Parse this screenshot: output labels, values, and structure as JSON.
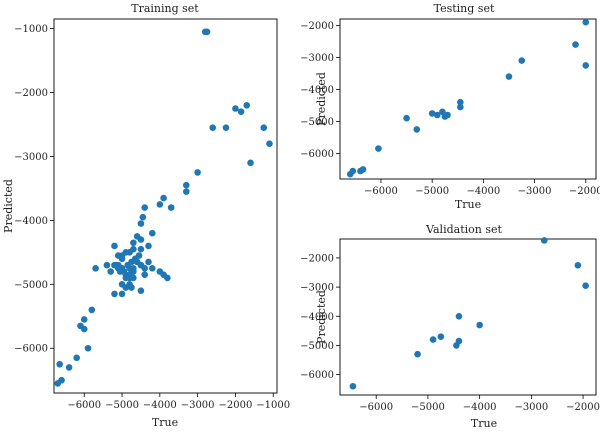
{
  "chart_data": [
    {
      "type": "scatter",
      "title": "Training set",
      "xlabel": "True",
      "ylabel": "Predicted",
      "xlim": [
        -6800,
        -900
      ],
      "ylim": [
        -6700,
        -850
      ],
      "xticks": [
        -6000,
        -5000,
        -4000,
        -3000,
        -2000,
        -1000
      ],
      "xtick_labels": [
        "−6000",
        "−5000",
        "−4000",
        "−3000",
        "−2000",
        "−1000"
      ],
      "yticks": [
        -6000,
        -5000,
        -4000,
        -3000,
        -2000,
        -1000
      ],
      "ytick_labels": [
        "−6000",
        "−5000",
        "−4000",
        "−3000",
        "−2000",
        "−1000"
      ],
      "grid": false,
      "x": [
        -2800,
        -2750,
        -1700,
        -1850,
        -2000,
        -2250,
        -1250,
        -1100,
        -1600,
        -2600,
        -3000,
        -3300,
        -3300,
        -3700,
        -3900,
        -4000,
        -4400,
        -4450,
        -4500,
        -4500,
        -4200,
        -4300,
        -4600,
        -4500,
        -4550,
        -4500,
        -4700,
        -4800,
        -4700,
        -4650,
        -4900,
        -5000,
        -5100,
        -5200,
        -5150,
        -5000,
        -5300,
        -5100,
        -4900,
        -4850,
        -4800,
        -4750,
        -4700,
        -4800,
        -4700,
        -4600,
        -4500,
        -5050,
        -5000,
        -5200,
        -4900,
        -4950,
        -4800,
        -4750,
        -5000,
        -5400,
        -4400,
        -4300,
        -4000,
        -3900,
        -3800,
        -4200,
        -4400,
        -4500,
        -4700,
        -4800,
        -4900,
        -5200,
        -5000,
        -5100,
        -5700,
        -5800,
        -6100,
        -6000,
        -6000,
        -5900,
        -6200,
        -6400,
        -6650,
        -6600,
        -6700
      ],
      "y": [
        -1050,
        -1050,
        -2200,
        -2300,
        -2250,
        -2550,
        -2550,
        -2800,
        -3100,
        -2550,
        -3250,
        -3450,
        -3550,
        -3800,
        -3650,
        -3750,
        -3800,
        -3950,
        -4050,
        -4300,
        -4200,
        -4400,
        -4250,
        -4450,
        -4550,
        -4700,
        -4350,
        -4500,
        -4450,
        -4600,
        -4500,
        -4550,
        -4550,
        -4400,
        -4700,
        -4600,
        -4800,
        -4750,
        -4850,
        -4700,
        -4750,
        -4650,
        -4800,
        -4900,
        -4750,
        -4650,
        -4700,
        -4800,
        -4750,
        -4700,
        -4900,
        -4800,
        -4850,
        -5050,
        -5000,
        -4700,
        -4750,
        -4650,
        -4800,
        -4850,
        -4900,
        -4750,
        -4850,
        -5100,
        -4900,
        -5000,
        -5050,
        -5150,
        -5150,
        -4700,
        -4750,
        -5400,
        -5650,
        -5550,
        -5700,
        -6000,
        -6150,
        -6300,
        -6250,
        -6500,
        -6550
      ]
    },
    {
      "type": "scatter",
      "title": "Testing set",
      "xlabel": "True",
      "ylabel": "Predicted",
      "xlim": [
        -6800,
        -1800
      ],
      "ylim": [
        -6800,
        -1800
      ],
      "xticks": [
        -6000,
        -5000,
        -4000,
        -3000,
        -2000
      ],
      "xtick_labels": [
        "−6000",
        "−5000",
        "−4000",
        "−3000",
        "−2000"
      ],
      "yticks": [
        -6000,
        -5000,
        -4000,
        -3000,
        -2000
      ],
      "ytick_labels": [
        "−6000",
        "−5000",
        "−4000",
        "−3000",
        "−2000"
      ],
      "grid": false,
      "x": [
        -6600,
        -6550,
        -6400,
        -6350,
        -6050,
        -5500,
        -5300,
        -5000,
        -4900,
        -4800,
        -4750,
        -4700,
        -4450,
        -4450,
        -3500,
        -3250,
        -2200,
        -2000,
        -2000
      ],
      "y": [
        -6650,
        -6550,
        -6550,
        -6500,
        -5850,
        -4900,
        -5250,
        -4750,
        -4800,
        -4700,
        -4850,
        -4800,
        -4550,
        -4400,
        -3600,
        -3100,
        -2600,
        -1900,
        -3250
      ]
    },
    {
      "type": "scatter",
      "title": "Validation set",
      "xlabel": "True",
      "ylabel": "Predicted",
      "xlim": [
        -6700,
        -1750
      ],
      "ylim": [
        -6700,
        -1350
      ],
      "xticks": [
        -6000,
        -5000,
        -4000,
        -3000,
        -2000
      ],
      "xtick_labels": [
        "−6000",
        "−5000",
        "−4000",
        "−3000",
        "−2000"
      ],
      "yticks": [
        -6000,
        -5000,
        -4000,
        -3000,
        -2000
      ],
      "ytick_labels": [
        "−6000",
        "−5000",
        "−4000",
        "−3000",
        "−2000"
      ],
      "grid": false,
      "x": [
        -6450,
        -5200,
        -4900,
        -4750,
        -4450,
        -4400,
        -4400,
        -4000,
        -2750,
        -2100,
        -1950
      ],
      "y": [
        -6400,
        -5300,
        -4800,
        -4700,
        -5000,
        -4000,
        -4850,
        -4300,
        -1400,
        -2250,
        -2950
      ]
    }
  ]
}
